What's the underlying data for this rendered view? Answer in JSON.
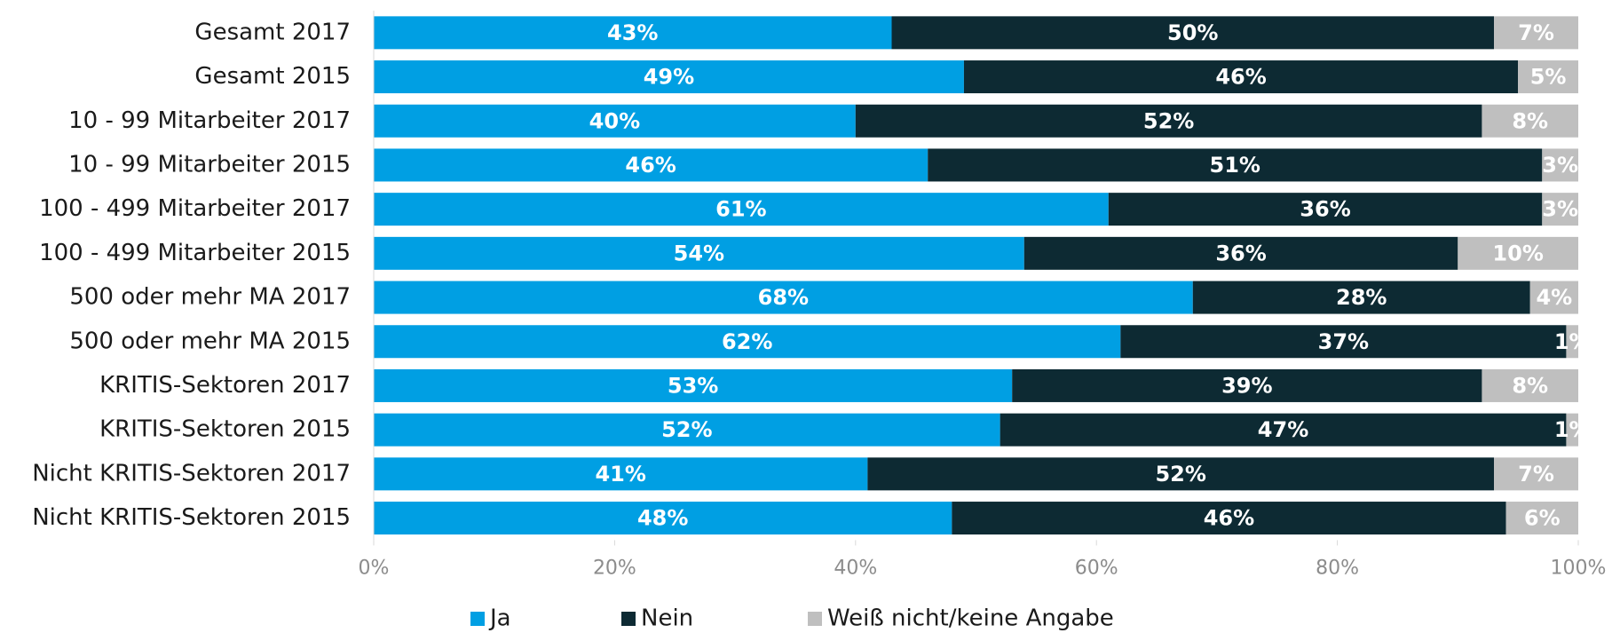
{
  "chart_data": {
    "type": "stacked_bar_horizontal",
    "categories": [
      "Gesamt 2017",
      "Gesamt 2015",
      "10 - 99 Mitarbeiter 2017",
      "10 - 99 Mitarbeiter 2015",
      "100 - 499 Mitarbeiter 2017",
      "100 - 499 Mitarbeiter 2015",
      "500 oder mehr MA 2017",
      "500 oder mehr MA 2015",
      "KRITIS-Sektoren 2017",
      "KRITIS-Sektoren 2015",
      "Nicht KRITIS-Sektoren 2017",
      "Nicht KRITIS-Sektoren 2015"
    ],
    "series": [
      {
        "name": "Ja",
        "color": "#009fe3",
        "values": [
          43,
          49,
          40,
          46,
          61,
          54,
          68,
          62,
          53,
          52,
          41,
          48
        ],
        "value_labels": [
          "43%",
          "49%",
          "40%",
          "46%",
          "61%",
          "54%",
          "68%",
          "62%",
          "53%",
          "52%",
          "41%",
          "48%"
        ]
      },
      {
        "name": "Nein",
        "color": "#0d2a33",
        "values": [
          50,
          46,
          52,
          51,
          36,
          36,
          28,
          37,
          39,
          47,
          52,
          46
        ],
        "value_labels": [
          "50%",
          "46%",
          "52%",
          "51%",
          "36%",
          "36%",
          "28%",
          "37%",
          "39%",
          "47%",
          "52%",
          "46%"
        ]
      },
      {
        "name": "Weiß nicht/keine Angabe",
        "color": "#bfbfbf",
        "values": [
          7,
          5,
          8,
          3,
          3,
          10,
          4,
          1,
          8,
          1,
          7,
          6
        ],
        "value_labels": [
          "7%",
          "5%",
          "8%",
          "3%",
          "3%",
          "10%",
          "4%",
          "1%",
          "8%",
          "1%",
          "7%",
          "6%"
        ]
      }
    ],
    "xlim": [
      0,
      100
    ],
    "xticks": [
      {
        "value": 0,
        "label": "0%"
      },
      {
        "value": 20,
        "label": "20%"
      },
      {
        "value": 40,
        "label": "40%"
      },
      {
        "value": 60,
        "label": "60%"
      },
      {
        "value": 80,
        "label": "80%"
      },
      {
        "value": 100,
        "label": "100%"
      }
    ],
    "legend": "bottom"
  }
}
